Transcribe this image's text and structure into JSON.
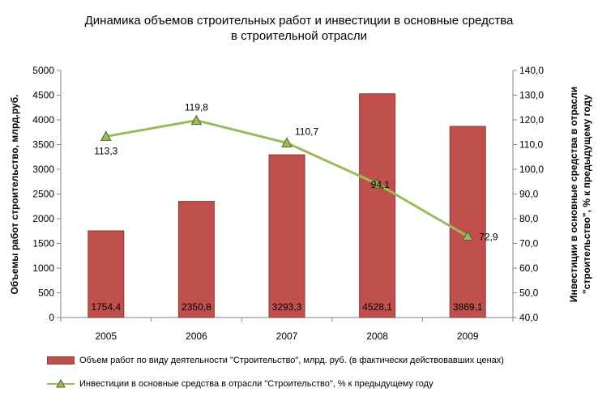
{
  "title_line1": "Динамика объемов строительных работ и инвестиции в основные средства",
  "title_line2": "в строительной отрасли",
  "chart_data": {
    "type": "bar+line",
    "categories": [
      "2005",
      "2006",
      "2007",
      "2008",
      "2009"
    ],
    "series": [
      {
        "name": "Объем работ по виду деятельности \"Строительство\", млрд. руб. (в фактически действовавших ценах)",
        "type": "bar",
        "axis": "left",
        "color": "#c0504d",
        "values": [
          1754.4,
          2350.8,
          3293.3,
          4528.1,
          3869.1
        ],
        "labels": [
          "1754,4",
          "2350,8",
          "3293,3",
          "4528,1",
          "3869,1"
        ]
      },
      {
        "name": "Инвестиции в основные средства в отрасли \"Строительство\", % к предыдущему году",
        "type": "line",
        "axis": "right",
        "color": "#9bbb59",
        "marker": "triangle",
        "values": [
          113.3,
          119.8,
          110.7,
          94.1,
          72.9
        ],
        "labels": [
          "113,3",
          "119,8",
          "110,7",
          "94,1",
          "72,9"
        ]
      }
    ],
    "left_axis": {
      "label": "Объемы работ строительство,  млрд.руб.",
      "range": [
        0,
        5000
      ],
      "ticks": [
        0,
        500,
        1000,
        1500,
        2000,
        2500,
        3000,
        3500,
        4000,
        4500,
        5000
      ],
      "tick_labels": [
        "0",
        "500",
        "1000",
        "1500",
        "2000",
        "2500",
        "3000",
        "3500",
        "4000",
        "4500",
        "5000"
      ]
    },
    "right_axis": {
      "label_line1": "Инвестиции  в основные  средства в отрасли",
      "label_line2": "\"строительство\",  % к предыдущему году",
      "range": [
        40,
        140
      ],
      "ticks": [
        40,
        50,
        60,
        70,
        80,
        90,
        100,
        110,
        120,
        130,
        140
      ],
      "tick_labels": [
        "40,0",
        "50,0",
        "60,0",
        "70,0",
        "80,0",
        "90,0",
        "100,0",
        "110,0",
        "120,0",
        "130,0",
        "140,0"
      ]
    },
    "grid": false,
    "legend_position": "bottom"
  }
}
